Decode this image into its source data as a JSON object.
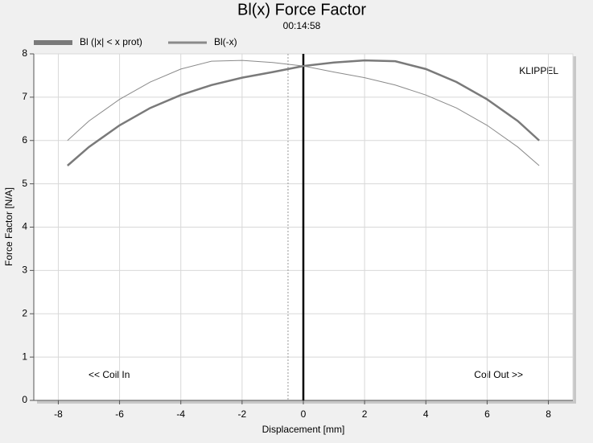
{
  "chart_data": {
    "type": "line",
    "title": "Bl(x) Force Factor",
    "subtitle": "00:14:58",
    "x_label": "Displacement [mm]",
    "y_label": "Force Factor [N/A]",
    "annotations": [
      "KLIPPEL",
      "<< Coil In",
      "Coil Out >>"
    ],
    "x": [
      -7.7,
      -7,
      -6,
      -5,
      -4,
      -3,
      -2,
      -1,
      0,
      1,
      2,
      3,
      4,
      5,
      6,
      7,
      7.7
    ],
    "series": [
      {
        "name": "Bl (|x| < x prot)",
        "color": "#7a7a7a",
        "width": 2.5,
        "values": [
          5.42,
          5.85,
          6.35,
          6.75,
          7.05,
          7.28,
          7.45,
          7.58,
          7.72,
          7.8,
          7.85,
          7.83,
          7.65,
          7.35,
          6.95,
          6.45,
          6.0
        ]
      },
      {
        "name": "Bl(-x)",
        "color": "#8a8a8a",
        "width": 1,
        "values": [
          6.0,
          6.45,
          6.95,
          7.35,
          7.65,
          7.83,
          7.85,
          7.8,
          7.72,
          7.58,
          7.45,
          7.28,
          7.05,
          6.75,
          6.35,
          5.85,
          5.42
        ]
      }
    ],
    "vlines": [
      0,
      -0.5
    ],
    "xlim": [
      -8.8,
      8.8
    ],
    "ylim": [
      0,
      8
    ],
    "xticks": [
      -8,
      -6,
      -4,
      -2,
      0,
      2,
      4,
      6,
      8
    ],
    "yticks": [
      0,
      1,
      2,
      3,
      4,
      5,
      6,
      7,
      8
    ],
    "grid": true,
    "legend": "top-left"
  }
}
